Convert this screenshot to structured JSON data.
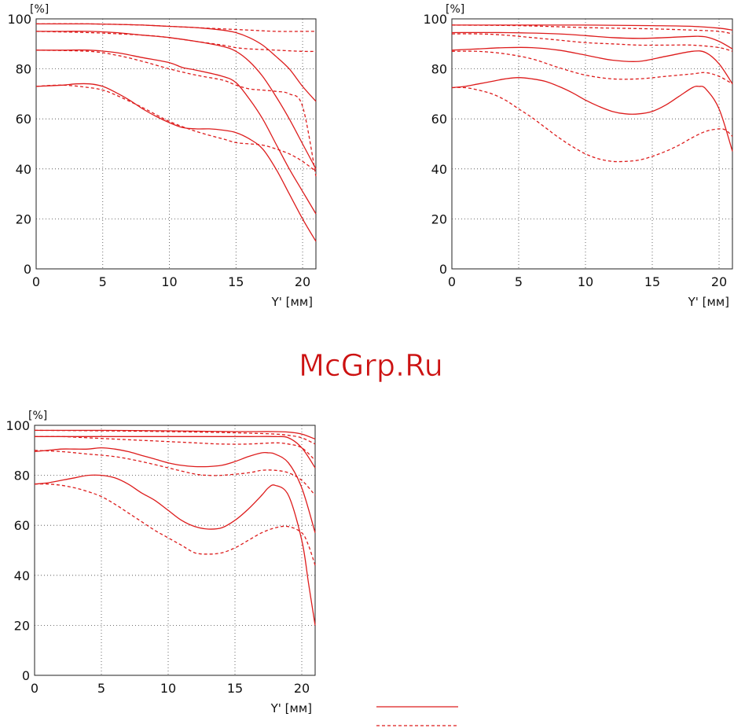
{
  "watermark": "McGrp.Ru",
  "legend": {
    "solid": "",
    "dashed": ""
  },
  "chart_data": [
    {
      "type": "line",
      "unit_label": "[%]",
      "xlabel": "Y' [мм]",
      "xlim": [
        0,
        21
      ],
      "ylim": [
        0,
        100
      ],
      "xticks": [
        0,
        5,
        10,
        15,
        20
      ],
      "yticks": [
        0,
        20,
        40,
        60,
        80,
        100
      ],
      "grid": true,
      "color": "#dd1c1c",
      "series": [
        {
          "style": "solid",
          "x": [
            0,
            2,
            4,
            6,
            8,
            10,
            12,
            14,
            15,
            16,
            17,
            18,
            19,
            20,
            21
          ],
          "y": [
            98,
            98,
            98,
            97.8,
            97.5,
            97,
            96.5,
            95.5,
            94.5,
            92.5,
            89.5,
            85,
            80,
            73,
            67
          ]
        },
        {
          "style": "dashed",
          "x": [
            0,
            4,
            8,
            10,
            12,
            14,
            16,
            18,
            20,
            21
          ],
          "y": [
            98,
            98,
            97.5,
            97,
            96.5,
            96,
            95.5,
            95,
            95,
            95
          ]
        },
        {
          "style": "solid",
          "x": [
            0,
            2,
            4,
            6,
            8,
            10,
            12,
            14,
            15,
            16,
            17,
            18,
            19,
            20,
            21
          ],
          "y": [
            95,
            95,
            95,
            94.5,
            93.5,
            92.5,
            91,
            89,
            87,
            83,
            77,
            69,
            60,
            50,
            40
          ]
        },
        {
          "style": "dashed",
          "x": [
            0,
            4,
            8,
            10,
            12,
            14,
            15,
            16,
            18,
            20,
            21
          ],
          "y": [
            95,
            94.5,
            93.5,
            92.5,
            91,
            89.5,
            88.5,
            88,
            87.5,
            87,
            87
          ]
        },
        {
          "style": "solid",
          "x": [
            0,
            2,
            4,
            6,
            8,
            10,
            11,
            12,
            14,
            15,
            16,
            17,
            18,
            19,
            20,
            21
          ],
          "y": [
            87.5,
            87.5,
            87.5,
            86.5,
            84.5,
            82.5,
            80.5,
            79.5,
            77,
            74.5,
            68,
            60,
            50,
            40,
            31,
            22
          ]
        },
        {
          "style": "dashed",
          "x": [
            0,
            4,
            6,
            8,
            10,
            12,
            14,
            15,
            16,
            17,
            18,
            19,
            20,
            21
          ],
          "y": [
            87.5,
            87,
            85.5,
            83,
            80,
            77.5,
            75.5,
            73.5,
            72,
            71.5,
            71,
            70,
            65,
            37
          ]
        },
        {
          "style": "solid",
          "x": [
            0,
            2,
            3,
            4,
            5,
            6,
            7,
            8,
            9,
            10,
            11,
            12,
            13,
            14,
            15,
            16,
            17,
            18,
            19,
            20,
            21
          ],
          "y": [
            73,
            73.5,
            74,
            74,
            73,
            70.5,
            67.5,
            64,
            61,
            58.5,
            56.5,
            56,
            56,
            55.5,
            54.5,
            52,
            48,
            40,
            30,
            20,
            11
          ]
        },
        {
          "style": "dashed",
          "x": [
            0,
            2,
            4,
            5,
            6,
            8,
            10,
            12,
            14,
            15,
            16,
            17,
            18,
            19,
            20,
            21
          ],
          "y": [
            73,
            73.5,
            72.5,
            71.5,
            69.5,
            64.5,
            59,
            55,
            52,
            50.5,
            50,
            49.5,
            48,
            46,
            43,
            39
          ]
        }
      ]
    },
    {
      "type": "line",
      "unit_label": "[%]",
      "xlabel": "Y' [мм]",
      "xlim": [
        0,
        21
      ],
      "ylim": [
        0,
        100
      ],
      "xticks": [
        0,
        5,
        10,
        15,
        20
      ],
      "yticks": [
        0,
        20,
        40,
        60,
        80,
        100
      ],
      "grid": true,
      "color": "#dd1c1c",
      "series": [
        {
          "style": "solid",
          "x": [
            0,
            5,
            10,
            15,
            18,
            20,
            21
          ],
          "y": [
            97.5,
            97.5,
            97.5,
            97.3,
            97,
            96.3,
            95.5
          ]
        },
        {
          "style": "dashed",
          "x": [
            0,
            5,
            10,
            15,
            18,
            20,
            21
          ],
          "y": [
            97.5,
            97.3,
            96.5,
            96,
            95.5,
            95,
            94
          ]
        },
        {
          "style": "solid",
          "x": [
            0,
            4,
            8,
            10,
            12,
            14,
            16,
            18,
            19,
            20,
            21
          ],
          "y": [
            94.5,
            94.5,
            94,
            93.3,
            92.5,
            92.2,
            92.5,
            93,
            92.8,
            91,
            88
          ]
        },
        {
          "style": "dashed",
          "x": [
            0,
            2,
            4,
            6,
            8,
            10,
            12,
            14,
            16,
            18,
            20,
            21
          ],
          "y": [
            94,
            94,
            93.5,
            92.5,
            91.5,
            90.5,
            90,
            89.5,
            89.5,
            89.5,
            88.5,
            87
          ]
        },
        {
          "style": "solid",
          "x": [
            0,
            2,
            4,
            6,
            8,
            10,
            12,
            14,
            16,
            18,
            19,
            20,
            21
          ],
          "y": [
            87.5,
            88,
            88.5,
            88.5,
            87.5,
            85.5,
            83.5,
            83,
            85,
            87,
            86.5,
            82,
            74
          ]
        },
        {
          "style": "dashed",
          "x": [
            0,
            2,
            4,
            6,
            8,
            10,
            12,
            14,
            16,
            18,
            19,
            20,
            21
          ],
          "y": [
            87,
            87,
            86,
            84,
            80.5,
            77.5,
            76,
            76,
            77,
            78,
            78.5,
            77,
            74
          ]
        },
        {
          "style": "solid",
          "x": [
            0,
            1,
            2,
            3,
            4,
            5,
            6,
            7,
            8,
            9,
            10,
            11,
            12,
            13,
            14,
            15,
            16,
            17,
            18,
            18.5,
            19,
            20,
            21
          ],
          "y": [
            72.5,
            73,
            74,
            75,
            76,
            76.5,
            76,
            75,
            73,
            70.5,
            67.5,
            65,
            63,
            62,
            62,
            63,
            65.5,
            69,
            72.5,
            73,
            72,
            64,
            47
          ]
        },
        {
          "style": "dashed",
          "x": [
            0,
            1,
            2,
            3,
            4,
            5,
            6,
            7,
            8,
            9,
            10,
            11,
            12,
            13,
            14,
            15,
            16,
            17,
            18,
            19,
            20,
            20.5,
            21
          ],
          "y": [
            72.5,
            72.5,
            71.5,
            70,
            67.5,
            64,
            60.5,
            56.5,
            52.5,
            49,
            46,
            44,
            43,
            43,
            43.5,
            45,
            47,
            49.5,
            52.5,
            55,
            56,
            55.5,
            53
          ]
        }
      ]
    },
    {
      "type": "line",
      "unit_label": "[%]",
      "xlabel": "Y' [мм]",
      "xlim": [
        0,
        21
      ],
      "ylim": [
        0,
        100
      ],
      "xticks": [
        0,
        5,
        10,
        15,
        20
      ],
      "yticks": [
        0,
        20,
        40,
        60,
        80,
        100
      ],
      "grid": true,
      "color": "#dd1c1c",
      "series": [
        {
          "style": "solid",
          "x": [
            0,
            5,
            10,
            15,
            18,
            19,
            20,
            21
          ],
          "y": [
            98,
            98,
            97.8,
            97.5,
            97.5,
            97.3,
            96.5,
            94.5
          ]
        },
        {
          "style": "dashed",
          "x": [
            0,
            5,
            10,
            15,
            18,
            19,
            20,
            21
          ],
          "y": [
            98,
            97.8,
            97.5,
            97,
            96.5,
            96,
            95,
            92.5
          ]
        },
        {
          "style": "solid",
          "x": [
            0,
            4,
            8,
            10,
            12,
            14,
            16,
            18,
            19,
            20,
            21
          ],
          "y": [
            95.5,
            95.5,
            95.5,
            95.5,
            95.5,
            95.5,
            95.5,
            95.5,
            95,
            91,
            83
          ]
        },
        {
          "style": "dashed",
          "x": [
            0,
            2,
            4,
            6,
            8,
            10,
            12,
            14,
            16,
            18,
            19,
            20,
            21
          ],
          "y": [
            95.5,
            95.5,
            95,
            94.5,
            94,
            93.5,
            93,
            92.5,
            92.5,
            93,
            92.5,
            91,
            86
          ]
        },
        {
          "style": "solid",
          "x": [
            0,
            1,
            2,
            3,
            4,
            5,
            6,
            7,
            8,
            9,
            10,
            11,
            12,
            13,
            14,
            15,
            16,
            17,
            17.5,
            18,
            19,
            20,
            21
          ],
          "y": [
            89.5,
            90,
            90.5,
            90.5,
            90.5,
            91,
            90.5,
            89.5,
            88,
            86.5,
            85,
            84,
            83.5,
            83.5,
            84,
            85.5,
            87.5,
            89,
            89,
            88.5,
            85,
            75,
            57
          ]
        },
        {
          "style": "dashed",
          "x": [
            0,
            2,
            4,
            6,
            8,
            10,
            12,
            13,
            14,
            16,
            17,
            18,
            19,
            20,
            21
          ],
          "y": [
            90,
            89.5,
            88.5,
            87.5,
            85.5,
            83,
            80.5,
            80,
            80,
            81,
            82,
            82,
            81,
            78,
            72
          ]
        },
        {
          "style": "solid",
          "x": [
            0,
            1,
            2,
            3,
            4,
            5,
            6,
            7,
            8,
            9,
            10,
            11,
            12,
            13,
            14,
            15,
            16,
            17,
            17.5,
            18,
            19,
            20,
            20.5,
            21
          ],
          "y": [
            76.5,
            77,
            78,
            79,
            80,
            80,
            79,
            76.5,
            73,
            70,
            66,
            62,
            59.5,
            58.5,
            59,
            62,
            66.5,
            72,
            75,
            76,
            72,
            54,
            37,
            20
          ]
        },
        {
          "style": "dashed",
          "x": [
            0,
            1,
            2,
            3,
            4,
            5,
            6,
            7,
            8,
            9,
            10,
            11,
            12,
            13,
            14,
            15,
            16,
            17,
            18,
            19,
            20,
            20.5,
            21
          ],
          "y": [
            76.5,
            76.5,
            76,
            75,
            73.5,
            71.5,
            68.5,
            65,
            61.5,
            58,
            55,
            52,
            49,
            48.5,
            49,
            51,
            54,
            57,
            59,
            59.5,
            57,
            52,
            44
          ]
        }
      ]
    }
  ]
}
